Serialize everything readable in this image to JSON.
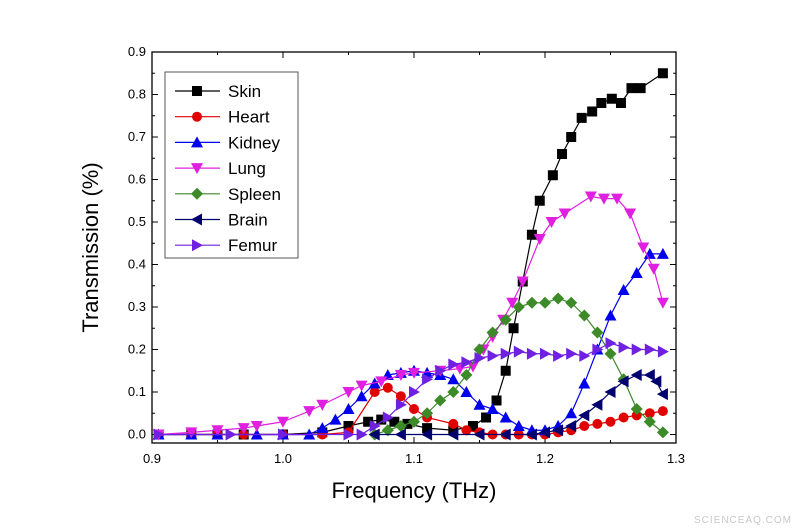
{
  "chart_data": {
    "type": "line",
    "title": "",
    "xlabel": "Frequency (THz)",
    "ylabel": "Transmission (%)",
    "xlim": [
      0.9,
      1.3
    ],
    "ylim": [
      -0.02,
      0.9
    ],
    "xticks": [
      "0.9",
      "1.0",
      "1.1",
      "1.2",
      "1.3"
    ],
    "yticks": [
      "0.0",
      "0.1",
      "0.2",
      "0.3",
      "0.4",
      "0.5",
      "0.6",
      "0.7",
      "0.8",
      "0.9"
    ],
    "grid": false,
    "legend_position": "top-left",
    "series": [
      {
        "name": "Skin",
        "color": "#000000",
        "marker": "square",
        "points": [
          [
            0.905,
            0
          ],
          [
            0.93,
            0
          ],
          [
            0.95,
            0
          ],
          [
            0.97,
            0
          ],
          [
            1.0,
            0
          ],
          [
            1.03,
            0.005
          ],
          [
            1.05,
            0.02
          ],
          [
            1.065,
            0.03
          ],
          [
            1.075,
            0.035
          ],
          [
            1.085,
            0.03
          ],
          [
            1.095,
            0.025
          ],
          [
            1.11,
            0.015
          ],
          [
            1.13,
            0.01
          ],
          [
            1.145,
            0.02
          ],
          [
            1.155,
            0.04
          ],
          [
            1.163,
            0.08
          ],
          [
            1.17,
            0.15
          ],
          [
            1.176,
            0.25
          ],
          [
            1.183,
            0.36
          ],
          [
            1.19,
            0.47
          ],
          [
            1.196,
            0.55
          ],
          [
            1.206,
            0.61
          ],
          [
            1.213,
            0.66
          ],
          [
            1.22,
            0.7
          ],
          [
            1.228,
            0.745
          ],
          [
            1.236,
            0.76
          ],
          [
            1.243,
            0.78
          ],
          [
            1.251,
            0.79
          ],
          [
            1.258,
            0.78
          ],
          [
            1.266,
            0.815
          ],
          [
            1.273,
            0.815
          ],
          [
            1.29,
            0.85
          ]
        ]
      },
      {
        "name": "Heart",
        "color": "#e00000",
        "marker": "circle",
        "points": [
          [
            0.905,
            0
          ],
          [
            0.93,
            0
          ],
          [
            0.95,
            0
          ],
          [
            0.97,
            0
          ],
          [
            1.0,
            0
          ],
          [
            1.03,
            0
          ],
          [
            1.05,
            0.005
          ],
          [
            1.07,
            0.1
          ],
          [
            1.08,
            0.11
          ],
          [
            1.09,
            0.09
          ],
          [
            1.1,
            0.06
          ],
          [
            1.11,
            0.04
          ],
          [
            1.13,
            0.025
          ],
          [
            1.14,
            0.01
          ],
          [
            1.15,
            0.005
          ],
          [
            1.16,
            0
          ],
          [
            1.17,
            0
          ],
          [
            1.18,
            0
          ],
          [
            1.19,
            0
          ],
          [
            1.2,
            0
          ],
          [
            1.21,
            0.005
          ],
          [
            1.22,
            0.01
          ],
          [
            1.23,
            0.02
          ],
          [
            1.24,
            0.025
          ],
          [
            1.25,
            0.03
          ],
          [
            1.26,
            0.04
          ],
          [
            1.27,
            0.045
          ],
          [
            1.28,
            0.05
          ],
          [
            1.29,
            0.055
          ]
        ]
      },
      {
        "name": "Kidney",
        "color": "#0000ee",
        "marker": "triangle-up",
        "points": [
          [
            0.905,
            0
          ],
          [
            0.93,
            0
          ],
          [
            0.95,
            0
          ],
          [
            0.98,
            0
          ],
          [
            1.0,
            0
          ],
          [
            1.02,
            0
          ],
          [
            1.03,
            0.015
          ],
          [
            1.04,
            0.035
          ],
          [
            1.05,
            0.06
          ],
          [
            1.06,
            0.09
          ],
          [
            1.07,
            0.12
          ],
          [
            1.08,
            0.14
          ],
          [
            1.09,
            0.145
          ],
          [
            1.1,
            0.15
          ],
          [
            1.11,
            0.145
          ],
          [
            1.12,
            0.14
          ],
          [
            1.13,
            0.13
          ],
          [
            1.14,
            0.1
          ],
          [
            1.15,
            0.07
          ],
          [
            1.16,
            0.06
          ],
          [
            1.17,
            0.04
          ],
          [
            1.18,
            0.02
          ],
          [
            1.19,
            0.01
          ],
          [
            1.2,
            0.01
          ],
          [
            1.21,
            0.02
          ],
          [
            1.22,
            0.05
          ],
          [
            1.23,
            0.12
          ],
          [
            1.24,
            0.2
          ],
          [
            1.25,
            0.28
          ],
          [
            1.26,
            0.34
          ],
          [
            1.27,
            0.38
          ],
          [
            1.28,
            0.425
          ],
          [
            1.29,
            0.425
          ]
        ]
      },
      {
        "name": "Lung",
        "color": "#e020e0",
        "marker": "triangle-down",
        "points": [
          [
            0.905,
            0
          ],
          [
            0.93,
            0.005
          ],
          [
            0.95,
            0.01
          ],
          [
            0.97,
            0.015
          ],
          [
            0.98,
            0.02
          ],
          [
            1.0,
            0.03
          ],
          [
            1.02,
            0.055
          ],
          [
            1.03,
            0.07
          ],
          [
            1.05,
            0.1
          ],
          [
            1.06,
            0.115
          ],
          [
            1.075,
            0.125
          ],
          [
            1.09,
            0.14
          ],
          [
            1.1,
            0.145
          ],
          [
            1.12,
            0.15
          ],
          [
            1.135,
            0.155
          ],
          [
            1.145,
            0.16
          ],
          [
            1.153,
            0.2
          ],
          [
            1.16,
            0.23
          ],
          [
            1.168,
            0.27
          ],
          [
            1.175,
            0.31
          ],
          [
            1.183,
            0.36
          ],
          [
            1.196,
            0.46
          ],
          [
            1.205,
            0.5
          ],
          [
            1.215,
            0.52
          ],
          [
            1.235,
            0.56
          ],
          [
            1.245,
            0.555
          ],
          [
            1.255,
            0.555
          ],
          [
            1.265,
            0.52
          ],
          [
            1.275,
            0.44
          ],
          [
            1.283,
            0.39
          ],
          [
            1.29,
            0.31
          ]
        ]
      },
      {
        "name": "Spleen",
        "color": "#3c8a28",
        "marker": "diamond",
        "points": [
          [
            1.07,
            0
          ],
          [
            1.08,
            0.01
          ],
          [
            1.09,
            0.02
          ],
          [
            1.1,
            0.03
          ],
          [
            1.11,
            0.05
          ],
          [
            1.12,
            0.08
          ],
          [
            1.13,
            0.1
          ],
          [
            1.14,
            0.14
          ],
          [
            1.15,
            0.2
          ],
          [
            1.16,
            0.24
          ],
          [
            1.17,
            0.27
          ],
          [
            1.18,
            0.3
          ],
          [
            1.19,
            0.31
          ],
          [
            1.2,
            0.31
          ],
          [
            1.21,
            0.32
          ],
          [
            1.22,
            0.31
          ],
          [
            1.23,
            0.28
          ],
          [
            1.24,
            0.24
          ],
          [
            1.25,
            0.19
          ],
          [
            1.26,
            0.13
          ],
          [
            1.27,
            0.06
          ],
          [
            1.28,
            0.03
          ],
          [
            1.29,
            0.005
          ]
        ]
      },
      {
        "name": "Brain",
        "color": "#00006e",
        "marker": "triangle-left",
        "points": [
          [
            1.07,
            0
          ],
          [
            1.09,
            0
          ],
          [
            1.11,
            0
          ],
          [
            1.13,
            0
          ],
          [
            1.15,
            0
          ],
          [
            1.17,
            0
          ],
          [
            1.19,
            0
          ],
          [
            1.2,
            0.005
          ],
          [
            1.21,
            0.01
          ],
          [
            1.22,
            0.02
          ],
          [
            1.23,
            0.045
          ],
          [
            1.24,
            0.07
          ],
          [
            1.25,
            0.1
          ],
          [
            1.26,
            0.125
          ],
          [
            1.27,
            0.14
          ],
          [
            1.28,
            0.14
          ],
          [
            1.285,
            0.125
          ],
          [
            1.29,
            0.095
          ]
        ]
      },
      {
        "name": "Femur",
        "color": "#7020e0",
        "marker": "triangle-right",
        "points": [
          [
            0.905,
            0
          ],
          [
            0.96,
            0
          ],
          [
            1.0,
            0
          ],
          [
            1.05,
            0
          ],
          [
            1.06,
            0
          ],
          [
            1.07,
            0.02
          ],
          [
            1.08,
            0.04
          ],
          [
            1.09,
            0.07
          ],
          [
            1.1,
            0.1
          ],
          [
            1.11,
            0.13
          ],
          [
            1.12,
            0.15
          ],
          [
            1.13,
            0.165
          ],
          [
            1.14,
            0.17
          ],
          [
            1.15,
            0.18
          ],
          [
            1.16,
            0.185
          ],
          [
            1.17,
            0.19
          ],
          [
            1.18,
            0.195
          ],
          [
            1.19,
            0.19
          ],
          [
            1.2,
            0.19
          ],
          [
            1.21,
            0.185
          ],
          [
            1.22,
            0.19
          ],
          [
            1.23,
            0.185
          ],
          [
            1.24,
            0.2
          ],
          [
            1.25,
            0.215
          ],
          [
            1.26,
            0.205
          ],
          [
            1.27,
            0.2
          ],
          [
            1.28,
            0.2
          ],
          [
            1.29,
            0.195
          ]
        ]
      }
    ]
  },
  "watermark": "SCIENCEAQ.COM"
}
